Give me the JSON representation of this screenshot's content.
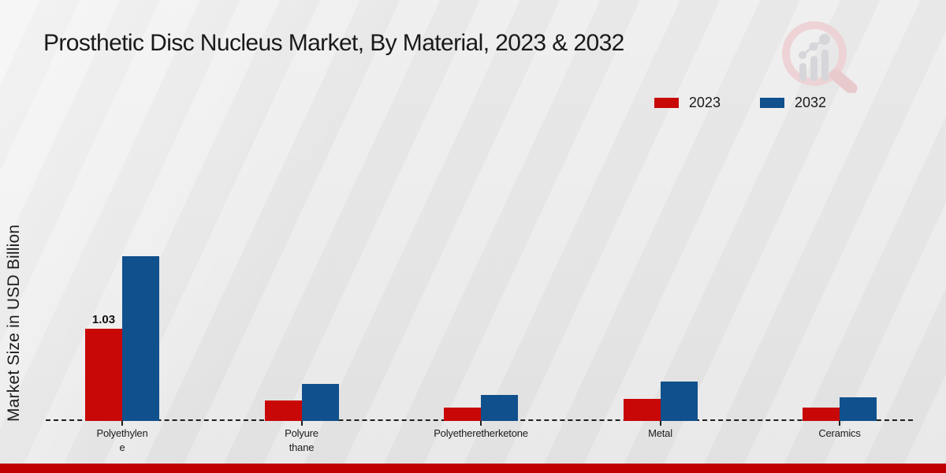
{
  "chart": {
    "watermark_icon": "bar-chart-magnifier-logo"
  },
  "colors": {
    "series_2023": "#c80707",
    "series_2032": "#10508c",
    "footer_accent": "#c00000",
    "background": "#ebebeb",
    "axis": "#1f1f1f"
  },
  "chart_data": {
    "type": "bar",
    "title": "Prosthetic Disc Nucleus Market, By Material, 2023 & 2032",
    "ylabel": "Market Size in USD Billion",
    "xlabel": "",
    "categories": [
      "Polyethylene",
      "Polyurethane",
      "Polyetheretherketone",
      "Metal",
      "Ceramics"
    ],
    "category_label_lines": [
      [
        "Polyethylen",
        "e"
      ],
      [
        "Polyure",
        "thane"
      ],
      [
        "Polyetheretherketone"
      ],
      [
        "Metal"
      ],
      [
        "Ceramics"
      ]
    ],
    "series": [
      {
        "name": "2023",
        "color": "#c80707",
        "values": [
          1.03,
          0.23,
          0.15,
          0.25,
          0.15
        ]
      },
      {
        "name": "2032",
        "color": "#10508c",
        "values": [
          1.84,
          0.41,
          0.29,
          0.44,
          0.26
        ]
      }
    ],
    "bar_labels": [
      [
        "1.03",
        "",
        "",
        "",
        ""
      ],
      [
        "",
        "",
        "",
        "",
        ""
      ]
    ],
    "ylim": [
      0,
      2.0
    ],
    "grid": false,
    "baseline_style": "dashed",
    "legend_position": "top-right",
    "y_axis_ticks_visible": false
  }
}
